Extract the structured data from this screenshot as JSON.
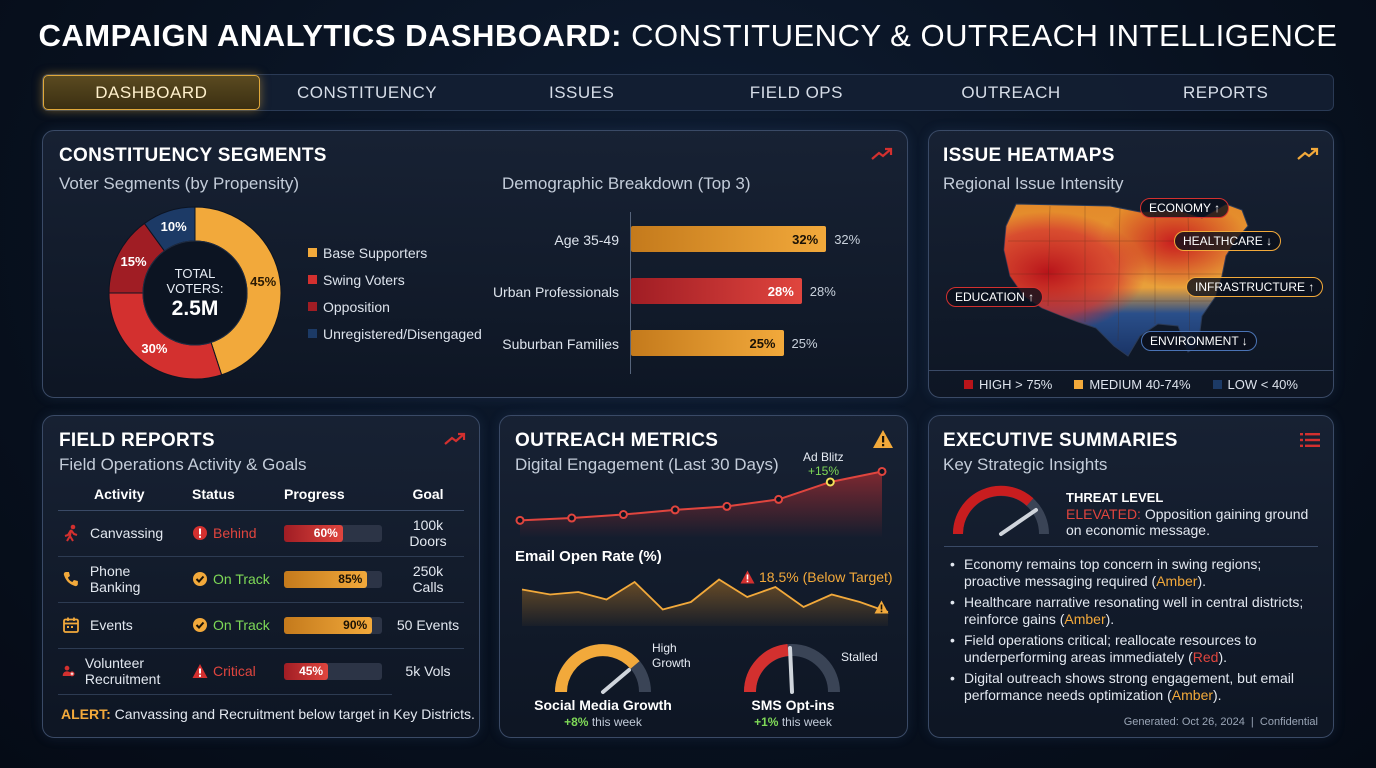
{
  "header": {
    "title_bold": "CAMPAIGN ANALYTICS DASHBOARD:",
    "title_light": "CONSTITUENCY & OUTREACH INTELLIGENCE"
  },
  "tabs": [
    {
      "label": "DASHBOARD",
      "active": true
    },
    {
      "label": "CONSTITUENCY",
      "active": false
    },
    {
      "label": "ISSUES",
      "active": false
    },
    {
      "label": "FIELD OPS",
      "active": false
    },
    {
      "label": "OUTREACH",
      "active": false
    },
    {
      "label": "REPORTS",
      "active": false
    }
  ],
  "constituency": {
    "title": "CONSTITUENCY SEGMENTS",
    "donut_subtitle": "Voter Segments (by Propensity)",
    "center_line1": "TOTAL",
    "center_line2": "VOTERS:",
    "center_value": "2.5M",
    "demo_subtitle": "Demographic Breakdown (Top 3)"
  },
  "issues": {
    "title": "ISSUE HEATMAPS",
    "subtitle": "Regional Issue Intensity",
    "tags": {
      "economy": "ECONOMY ↑",
      "healthcare": "HEALTHCARE ↓",
      "education": "EDUCATION ↑",
      "infrastructure": "INFRASTRUCTURE ↑",
      "environment": "ENVIRONMENT ↓"
    },
    "legend": {
      "high": "HIGH > 75%",
      "medium": "MEDIUM 40-74%",
      "low": "LOW < 40%"
    }
  },
  "field": {
    "title": "FIELD REPORTS",
    "subtitle": "Field Operations Activity & Goals",
    "headers": [
      "Activity",
      "Status",
      "Progress",
      "Goal"
    ],
    "rows": [
      {
        "activity": "Canvassing",
        "status": "Behind",
        "progress": "60%",
        "goal": "100k Doors"
      },
      {
        "activity": "Phone Banking",
        "status": "On Track",
        "progress": "85%",
        "goal": "250k Calls"
      },
      {
        "activity": "Events",
        "status": "On Track",
        "progress": "90%",
        "goal": "50 Events"
      },
      {
        "activity": "Volunteer Recruitment",
        "status": "Critical",
        "progress": "45%",
        "goal": "5k Vols"
      }
    ],
    "alert_label": "ALERT:",
    "alert_text": "Canvassing and Recruitment below target in Key Districts."
  },
  "outreach": {
    "title": "OUTREACH METRICS",
    "subtitle": "Digital Engagement (Last 30 Days)",
    "ad_blitz_label": "Ad Blitz",
    "ad_blitz_value": "+15%",
    "email_title": "Email Open Rate (%)",
    "email_note": "18.5% (Below Target)",
    "social_label": "Social Media Growth",
    "social_change": "+8%",
    "social_suffix": "this week",
    "social_status": "High Growth",
    "sms_label": "SMS Opt-ins",
    "sms_change": "+1%",
    "sms_suffix": "this week",
    "sms_status": "Stalled"
  },
  "executive": {
    "title": "EXECUTIVE SUMMARIES",
    "subtitle": "Key Strategic Insights",
    "threat_label": "THREAT LEVEL",
    "threat_level": "ELEVATED:",
    "threat_text": "Opposition gaining ground on economic message.",
    "bullets": [
      {
        "text": "Economy remains top concern in swing regions; proactive messaging required (",
        "tag": "Amber",
        "end": ")."
      },
      {
        "text": "Healthcare narrative resonating well in central districts; reinforce gains (",
        "tag": "Amber",
        "end": ")."
      },
      {
        "text": "Field operations critical; reallocate resources to underperforming areas immediately (",
        "tag": "Red",
        "end": ")."
      },
      {
        "text": "Digital outreach shows strong engagement, but email performance needs optimization (",
        "tag": "Amber",
        "end": ")."
      }
    ],
    "footer": "Generated: Oct 26, 2024  |  Confidential"
  },
  "colors": {
    "amber": "#f2a93b",
    "red": "#d3302f",
    "darkred": "#a01d24",
    "navy": "#1c3a66",
    "green": "#7ed957"
  },
  "chart_data": [
    {
      "type": "pie",
      "subtitle": "Voter Segments (by Propensity)",
      "categories": [
        "Base Supporters",
        "Swing Voters",
        "Opposition",
        "Unregistered/Disengaged"
      ],
      "values": [
        45,
        30,
        15,
        10
      ],
      "value_labels": [
        "45%",
        "30%",
        "15%",
        "10%"
      ]
    },
    {
      "type": "bar",
      "subtitle": "Demographic Breakdown (Top 3)",
      "categories": [
        "Age 35-49",
        "Urban Professionals",
        "Suburban Families"
      ],
      "values": [
        32,
        28,
        25
      ],
      "value_labels": [
        "32%",
        "28%",
        "25%"
      ]
    },
    {
      "type": "line",
      "subtitle": "Digital Engagement (Last 30 Days)",
      "values": [
        10,
        12,
        15,
        19,
        22,
        28,
        43,
        52
      ]
    },
    {
      "type": "area",
      "title": "Email Open Rate (%)",
      "values": [
        23,
        21,
        22,
        19,
        26,
        15,
        18,
        27,
        20,
        24,
        16,
        21,
        18,
        14
      ]
    }
  ]
}
